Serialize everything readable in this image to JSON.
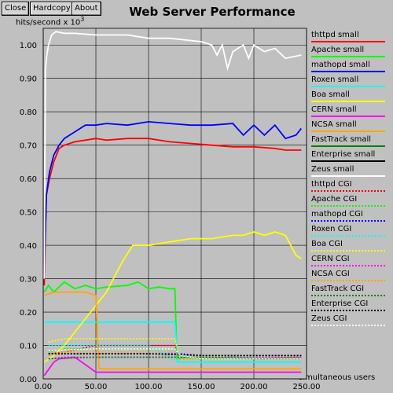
{
  "toolbar": {
    "close_label": "Close",
    "hardcopy_label": "Hardcopy",
    "about_label": "About"
  },
  "chart_data": {
    "type": "line",
    "title": "Web Server Performance",
    "ylabel_text": "hits/second x 10",
    "ylabel_exp": "3",
    "xlabel": "simultaneous users",
    "xlim": [
      0,
      250
    ],
    "ylim": [
      0,
      1.05
    ],
    "xticks": [
      "0.00",
      "50.00",
      "100.00",
      "150.00",
      "200.00",
      "250.00"
    ],
    "xtick_values": [
      0,
      50,
      100,
      150,
      200,
      250
    ],
    "yticks": [
      "0.00",
      "0.10",
      "0.20",
      "0.30",
      "0.40",
      "0.50",
      "0.60",
      "0.70",
      "0.80",
      "0.90",
      "1.00"
    ],
    "ytick_values": [
      0,
      0.1,
      0.2,
      0.3,
      0.4,
      0.5,
      0.6,
      0.7,
      0.8,
      0.9,
      1.0
    ],
    "grid": true,
    "legend_position": "right",
    "series": [
      {
        "name": "thttpd small",
        "color": "#ff0000",
        "dashed": false,
        "x": [
          1,
          3,
          6,
          10,
          15,
          20,
          30,
          40,
          50,
          60,
          80,
          100,
          120,
          140,
          160,
          180,
          200,
          220,
          230,
          240,
          245
        ],
        "y": [
          0.28,
          0.55,
          0.6,
          0.65,
          0.69,
          0.7,
          0.71,
          0.715,
          0.72,
          0.715,
          0.72,
          0.72,
          0.71,
          0.705,
          0.7,
          0.695,
          0.695,
          0.69,
          0.685,
          0.685,
          0.685
        ]
      },
      {
        "name": "Apache small",
        "color": "#00ff00",
        "dashed": false,
        "x": [
          1,
          5,
          10,
          20,
          30,
          40,
          50,
          60,
          80,
          90,
          100,
          110,
          120,
          125,
          127,
          135,
          150,
          180,
          210,
          240,
          245
        ],
        "y": [
          0.26,
          0.28,
          0.26,
          0.29,
          0.27,
          0.28,
          0.27,
          0.275,
          0.28,
          0.29,
          0.27,
          0.275,
          0.27,
          0.27,
          0.06,
          0.065,
          0.06,
          0.065,
          0.06,
          0.065,
          0.06
        ]
      },
      {
        "name": "mathopd small",
        "color": "#0000ff",
        "dashed": false,
        "x": [
          1,
          3,
          6,
          10,
          15,
          20,
          30,
          40,
          50,
          60,
          80,
          100,
          120,
          140,
          160,
          180,
          190,
          200,
          210,
          220,
          230,
          240,
          245
        ],
        "y": [
          0.32,
          0.55,
          0.62,
          0.67,
          0.7,
          0.72,
          0.74,
          0.76,
          0.76,
          0.765,
          0.76,
          0.77,
          0.765,
          0.76,
          0.76,
          0.765,
          0.73,
          0.76,
          0.73,
          0.76,
          0.72,
          0.73,
          0.75
        ]
      },
      {
        "name": "Roxen small",
        "color": "#00ffff",
        "dashed": false,
        "x": [
          1,
          20,
          50,
          100,
          125,
          128,
          150,
          200,
          245
        ],
        "y": [
          0.17,
          0.17,
          0.17,
          0.17,
          0.17,
          0.05,
          0.05,
          0.05,
          0.05
        ]
      },
      {
        "name": "Boa small",
        "color": "#ffff00",
        "dashed": false,
        "x": [
          1,
          10,
          20,
          40,
          60,
          75,
          85,
          100,
          120,
          140,
          160,
          180,
          190,
          200,
          210,
          220,
          230,
          240,
          245
        ],
        "y": [
          0.05,
          0.07,
          0.1,
          0.18,
          0.26,
          0.35,
          0.4,
          0.4,
          0.41,
          0.42,
          0.42,
          0.43,
          0.43,
          0.44,
          0.43,
          0.44,
          0.43,
          0.37,
          0.36
        ]
      },
      {
        "name": "CERN small",
        "color": "#ff00ff",
        "dashed": false,
        "x": [
          1,
          10,
          15,
          30,
          50,
          100,
          150,
          200,
          245
        ],
        "y": [
          0.01,
          0.05,
          0.06,
          0.065,
          0.02,
          0.02,
          0.02,
          0.02,
          0.02
        ]
      },
      {
        "name": "NCSA small",
        "color": "#ffa500",
        "dashed": false,
        "x": [
          1,
          10,
          20,
          40,
          50,
          53,
          60,
          100,
          150,
          200,
          245
        ],
        "y": [
          0.25,
          0.26,
          0.26,
          0.26,
          0.25,
          0.03,
          0.03,
          0.03,
          0.03,
          0.03,
          0.03
        ]
      },
      {
        "name": "FastTrack small",
        "color": "#008000",
        "dashed": false,
        "x": [],
        "y": []
      },
      {
        "name": "Enterprise small",
        "color": "#000000",
        "dashed": false,
        "x": [],
        "y": []
      },
      {
        "name": "Zeus small",
        "color": "#ffffff",
        "dashed": false,
        "x": [
          1,
          2,
          3,
          5,
          8,
          12,
          20,
          30,
          50,
          80,
          100,
          120,
          150,
          160,
          165,
          170,
          175,
          180,
          190,
          195,
          200,
          210,
          220,
          230,
          245
        ],
        "y": [
          0.3,
          0.92,
          0.96,
          1.0,
          1.03,
          1.04,
          1.035,
          1.035,
          1.03,
          1.03,
          1.02,
          1.02,
          1.01,
          1.0,
          0.97,
          1.0,
          0.93,
          0.98,
          1.0,
          0.96,
          1.0,
          0.98,
          0.99,
          0.96,
          0.97
        ]
      },
      {
        "name": "thttpd CGI",
        "color": "#ff0000",
        "dashed": true,
        "x": [
          5,
          20,
          50,
          100,
          125,
          130,
          150,
          200,
          245
        ],
        "y": [
          0.075,
          0.08,
          0.1,
          0.1,
          0.1,
          0.06,
          0.06,
          0.06,
          0.065
        ]
      },
      {
        "name": "Apache CGI",
        "color": "#00ff00",
        "dashed": true,
        "x": [
          5,
          20,
          50,
          100,
          125,
          130,
          150,
          200,
          245
        ],
        "y": [
          0.08,
          0.09,
          0.09,
          0.09,
          0.09,
          0.07,
          0.06,
          0.06,
          0.06
        ]
      },
      {
        "name": "mathopd CGI",
        "color": "#0000ff",
        "dashed": true,
        "x": [
          5,
          20,
          50,
          100,
          130,
          150,
          200,
          245
        ],
        "y": [
          0.075,
          0.075,
          0.075,
          0.075,
          0.075,
          0.07,
          0.07,
          0.07
        ]
      },
      {
        "name": "Roxen CGI",
        "color": "#00ffff",
        "dashed": true,
        "x": [
          5,
          20,
          50,
          100,
          128,
          150,
          200,
          245
        ],
        "y": [
          0.1,
          0.1,
          0.1,
          0.1,
          0.05,
          0.05,
          0.05,
          0.05
        ]
      },
      {
        "name": "Boa CGI",
        "color": "#ffff00",
        "dashed": true,
        "x": [
          5,
          20,
          50,
          100,
          125,
          130,
          150,
          200,
          245
        ],
        "y": [
          0.11,
          0.12,
          0.12,
          0.12,
          0.12,
          0.06,
          0.06,
          0.06,
          0.06
        ]
      },
      {
        "name": "CERN CGI",
        "color": "#ff00ff",
        "dashed": true,
        "x": [
          5,
          20,
          50,
          100,
          125,
          150,
          200,
          245
        ],
        "y": [
          0.06,
          0.065,
          0.065,
          0.065,
          0.065,
          0.065,
          0.065,
          0.065
        ]
      },
      {
        "name": "NCSA CGI",
        "color": "#ffa500",
        "dashed": true,
        "x": [
          5,
          20,
          50,
          100,
          125,
          130,
          150,
          200,
          245
        ],
        "y": [
          0.07,
          0.08,
          0.08,
          0.08,
          0.08,
          0.06,
          0.06,
          0.06,
          0.06
        ]
      },
      {
        "name": "FastTrack CGI",
        "color": "#008000",
        "dashed": true,
        "x": [
          5,
          50,
          100,
          150,
          200,
          245
        ],
        "y": [
          0.06,
          0.065,
          0.065,
          0.065,
          0.06,
          0.06
        ]
      },
      {
        "name": "Enterprise CGI",
        "color": "#000000",
        "dashed": true,
        "x": [
          5,
          50,
          100,
          150,
          200,
          245
        ],
        "y": [
          0.075,
          0.075,
          0.075,
          0.07,
          0.07,
          0.07
        ]
      },
      {
        "name": "Zeus CGI",
        "color": "#ffffff",
        "dashed": true,
        "x": [
          5,
          50,
          100,
          125,
          130,
          150,
          200,
          245
        ],
        "y": [
          0.085,
          0.09,
          0.09,
          0.09,
          0.07,
          0.06,
          0.06,
          0.06
        ]
      }
    ]
  }
}
